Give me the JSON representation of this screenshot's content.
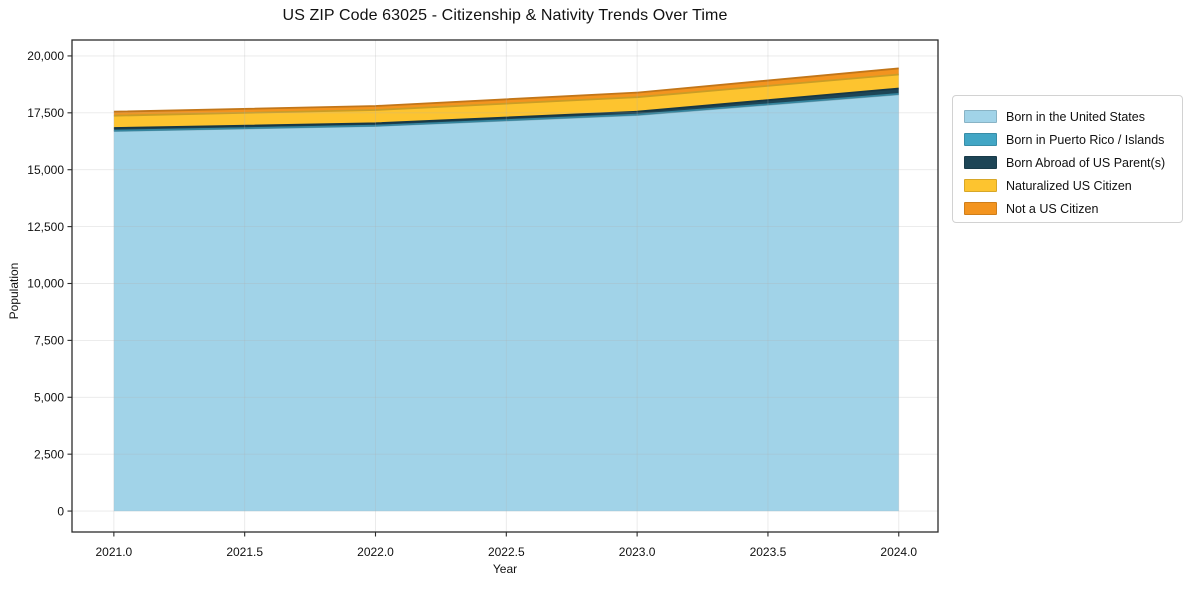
{
  "chart_data": {
    "type": "area",
    "stacked": true,
    "title": "US ZIP Code 63025 - Citizenship & Nativity Trends Over Time",
    "xlabel": "Year",
    "ylabel": "Population",
    "x": [
      2021,
      2022,
      2023,
      2024
    ],
    "series": [
      {
        "name": "Born in the United States",
        "color": "#a1d3e8",
        "values": [
          16700,
          16920,
          17400,
          18310
        ]
      },
      {
        "name": "Born in Puerto Rico / Islands",
        "color": "#42a6c5",
        "values": [
          15,
          15,
          20,
          20
        ]
      },
      {
        "name": "Born Abroad of US Parent(s)",
        "color": "#1d4556",
        "values": [
          120,
          105,
          130,
          240
        ]
      },
      {
        "name": "Naturalized US Citizen",
        "color": "#fdc42f",
        "values": [
          540,
          585,
          635,
          615
        ]
      },
      {
        "name": "Not a US Citizen",
        "color": "#f3941f",
        "values": [
          175,
          175,
          205,
          265
        ]
      }
    ],
    "totals": [
      17550,
      17800,
      18390,
      19450
    ],
    "xticks": [
      2021.0,
      2021.5,
      2022.0,
      2022.5,
      2023.0,
      2023.5,
      2024.0
    ],
    "xtick_labels": [
      "2021.0",
      "2021.5",
      "2022.0",
      "2022.5",
      "2023.0",
      "2023.5",
      "2024.0"
    ],
    "yticks": [
      0,
      2500,
      5000,
      7500,
      10000,
      12500,
      15000,
      17500,
      20000
    ],
    "ytick_labels": [
      "0",
      "2,500",
      "5,000",
      "7,500",
      "10,000",
      "12,500",
      "15,000",
      "17,500",
      "20,000"
    ],
    "xlim": [
      2020.84,
      2024.15
    ],
    "ylim": [
      -920,
      20700
    ],
    "grid": true,
    "legend_position": "right",
    "colors": {
      "spine": "#2b2b2b",
      "grid": "#b0b0b0",
      "text": "#111111",
      "background": "#ffffff"
    }
  }
}
